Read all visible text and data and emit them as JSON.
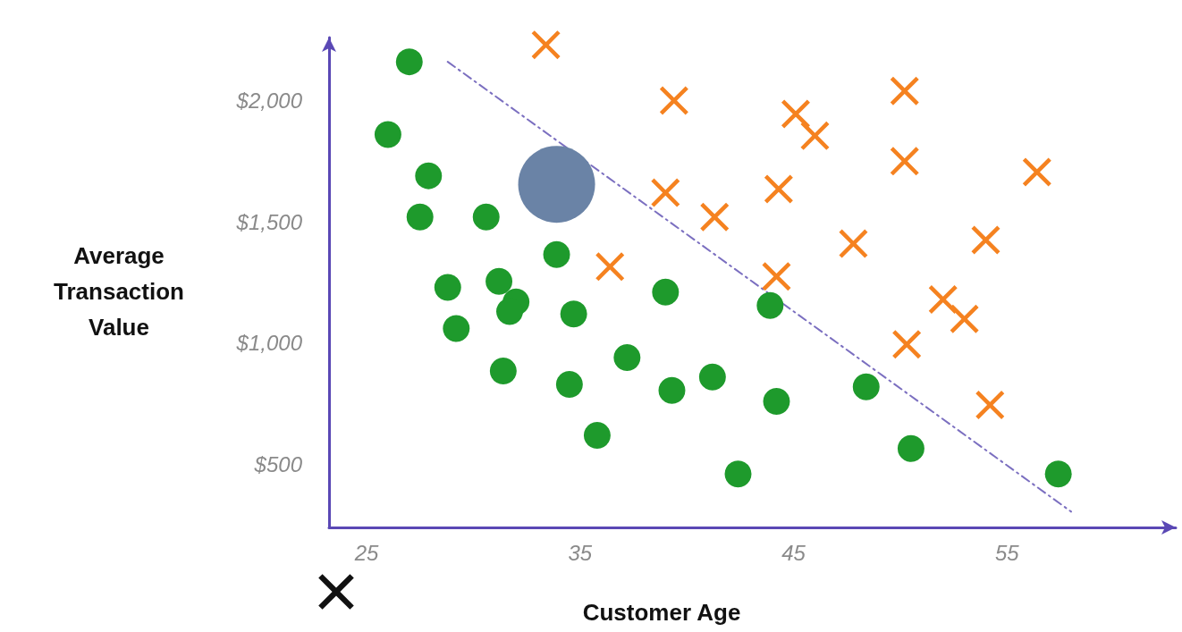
{
  "chart_data": {
    "type": "scatter",
    "xlabel": "Customer Age",
    "ylabel": "Average\nTransaction\nValue",
    "xlim": [
      23.24,
      62.9
    ],
    "ylim": [
      240,
      2260
    ],
    "xticks": [
      25,
      35,
      45,
      55
    ],
    "yticks": [
      {
        "value": 500,
        "label": "$500"
      },
      {
        "value": 1000,
        "label": "$1,000"
      },
      {
        "value": 1500,
        "label": "$1,500"
      },
      {
        "value": 2000,
        "label": "$2,000"
      }
    ],
    "grid": false,
    "series": [
      {
        "color": "#1e9a2c",
        "marker": "circle",
        "x": [
          27.0,
          26.0,
          27.9,
          27.5,
          30.6,
          33.9,
          28.8,
          31.2,
          32.0,
          31.7,
          34.7,
          29.2,
          39.0,
          43.9,
          31.4,
          34.5,
          37.2,
          39.3,
          41.2,
          44.2,
          48.4,
          35.8,
          42.4,
          50.5,
          57.4
        ],
        "values": [
          2160,
          1860,
          1690,
          1520,
          1520,
          1365,
          1230,
          1255,
          1170,
          1130,
          1120,
          1060,
          1210,
          1155,
          885,
          830,
          940,
          805,
          860,
          760,
          820,
          620,
          460,
          565,
          460
        ]
      },
      {
        "color": "#f58220",
        "marker": "cross",
        "x": [
          33.4,
          39.4,
          50.2,
          45.1,
          46.0,
          50.2,
          56.4,
          39.0,
          44.3,
          41.3,
          47.8,
          54.0,
          36.4,
          44.2,
          52.0,
          53.0,
          50.3,
          54.2
        ],
        "values": [
          2230,
          2000,
          2040,
          1945,
          1855,
          1750,
          1705,
          1620,
          1635,
          1520,
          1410,
          1425,
          1315,
          1275,
          1180,
          1100,
          995,
          745
        ]
      },
      {
        "type": "bubble",
        "color": "#6a83a6",
        "marker": "circle",
        "x": [
          33.9
        ],
        "values": [
          1655
        ],
        "sizes": [
          1
        ]
      },
      {
        "type": "line",
        "color": "#7b6fc0",
        "line_style": "dashed",
        "marker": "none",
        "x": [
          28.8,
          58.0
        ],
        "values": [
          2160,
          305
        ]
      }
    ]
  }
}
